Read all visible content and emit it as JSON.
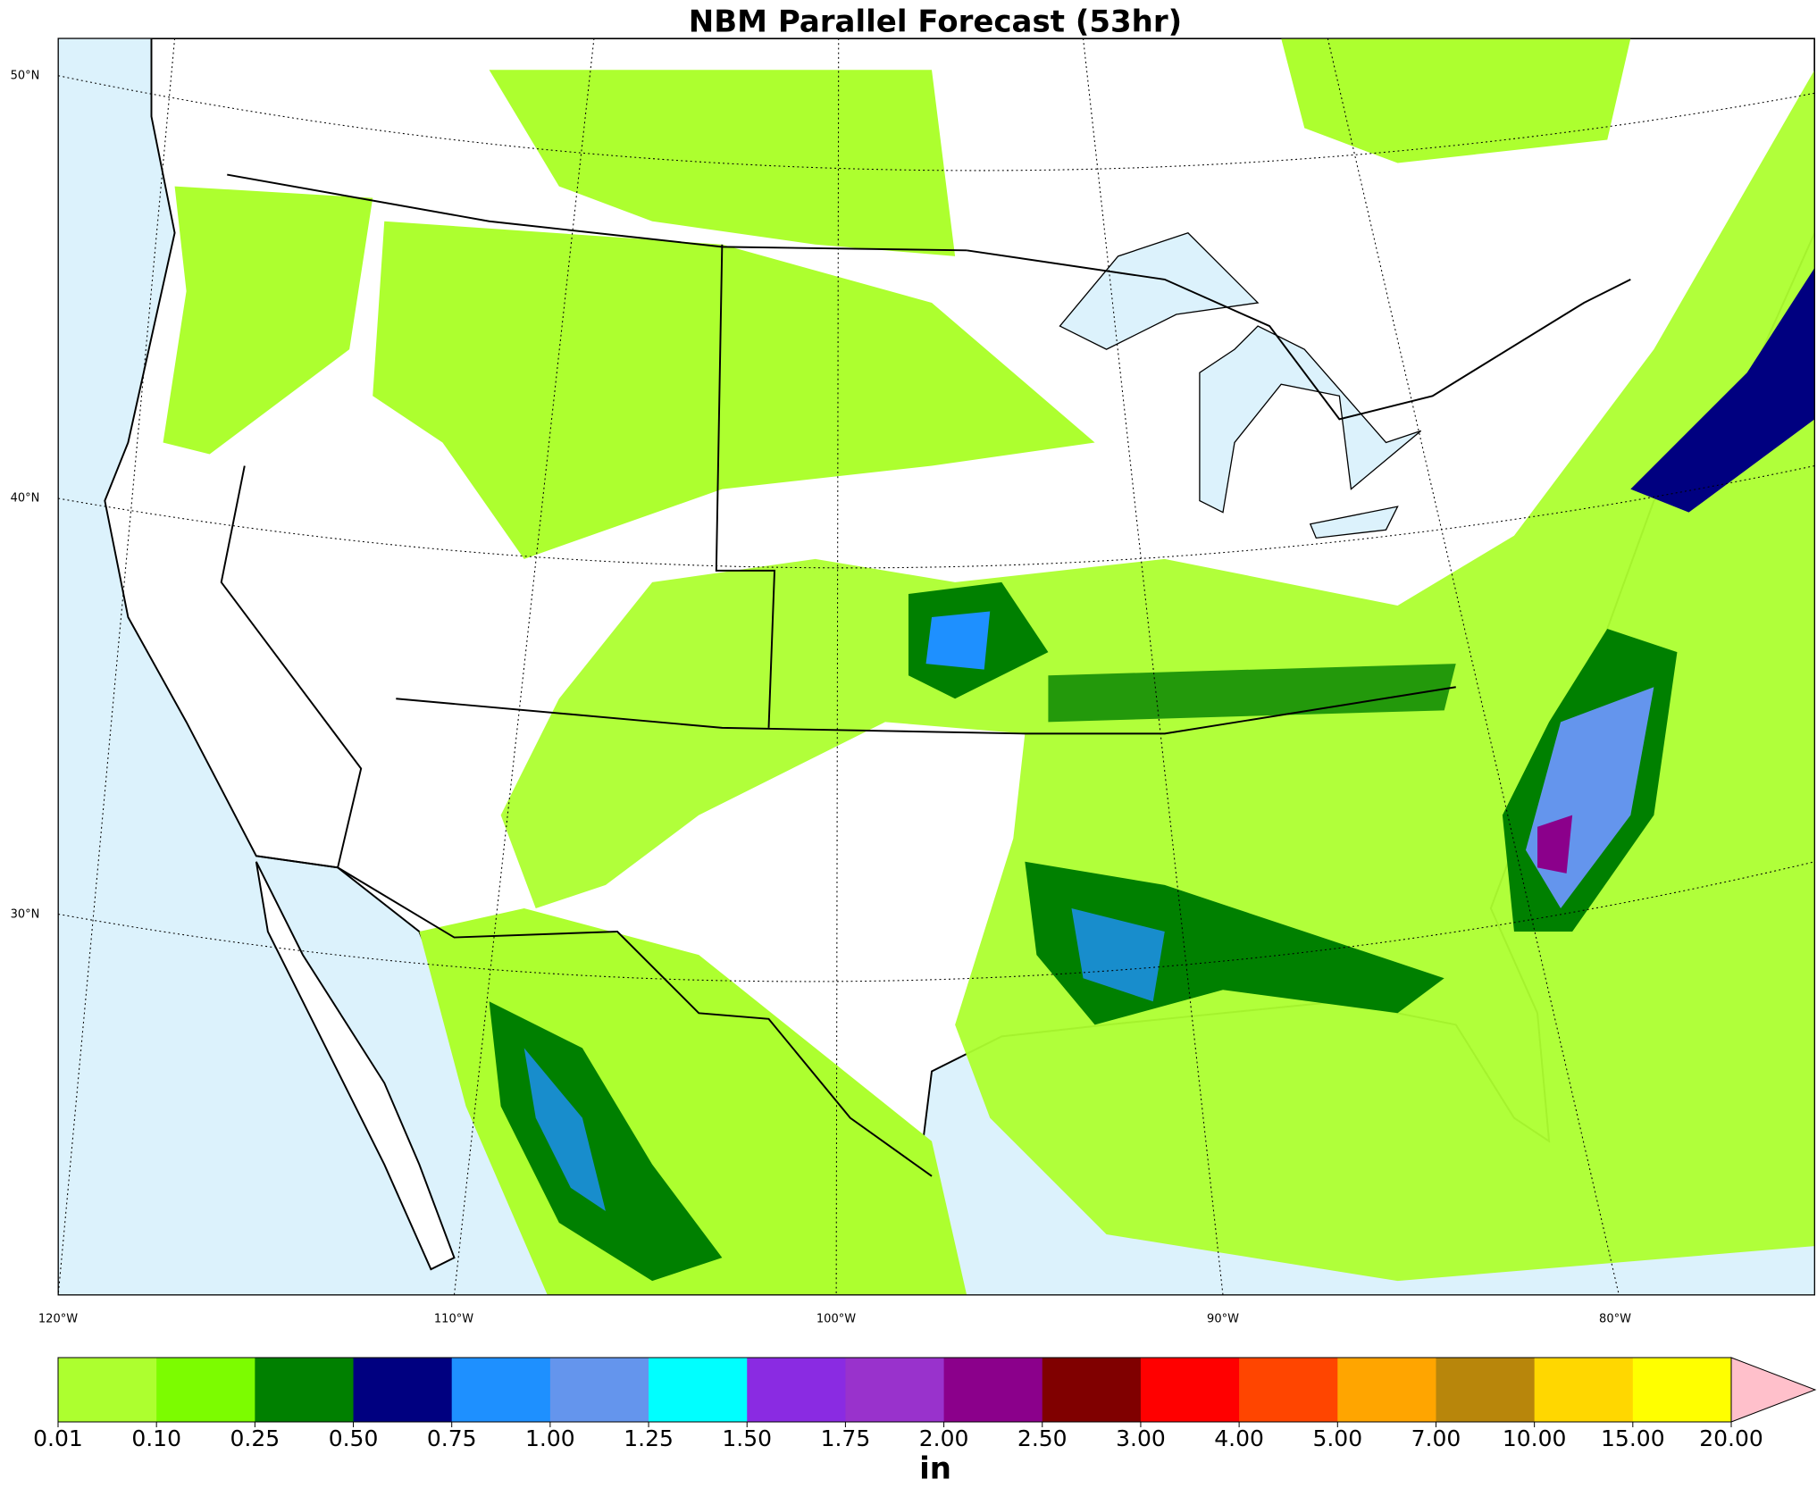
{
  "title": "NBM Parallel Forecast (53hr)",
  "latitude_labels": [
    "50°N",
    "40°N",
    "30°N"
  ],
  "longitude_labels": [
    "120°W",
    "110°W",
    "100°W",
    "90°W",
    "80°W"
  ],
  "colorbar": {
    "unit": "in",
    "colors": [
      "#adff2f",
      "#7cfc00",
      "#008000",
      "#000080",
      "#1e90ff",
      "#6495ed",
      "#00ffff",
      "#8a2be2",
      "#9932cc",
      "#8b008b",
      "#800000",
      "#ff0000",
      "#ff4500",
      "#ffa500",
      "#b8860b",
      "#ffd700",
      "#ffff00"
    ],
    "extend_color": "#ffc0cb",
    "ticks": [
      {
        "value": 0.01,
        "label": "0.01"
      },
      {
        "value": 0.1,
        "label": "0.10"
      },
      {
        "value": 0.25,
        "label": "0.25"
      },
      {
        "value": 0.5,
        "label": "0.50"
      },
      {
        "value": 0.75,
        "label": "0.75"
      },
      {
        "value": 1,
        "label": "1.00"
      },
      {
        "value": 1.25,
        "label": "1.25"
      },
      {
        "value": 1.5,
        "label": "1.50"
      },
      {
        "value": 1.75,
        "label": "1.75"
      },
      {
        "value": 2,
        "label": "2.00"
      },
      {
        "value": 2.5,
        "label": "2.50"
      },
      {
        "value": 3,
        "label": "3.00"
      },
      {
        "value": 4,
        "label": "4.00"
      },
      {
        "value": 5,
        "label": "5.00"
      },
      {
        "value": 7,
        "label": "7.00"
      },
      {
        "value": 10,
        "label": "10.00"
      },
      {
        "value": 15,
        "label": "15.00"
      },
      {
        "value": 20,
        "label": "20.00"
      }
    ]
  }
}
